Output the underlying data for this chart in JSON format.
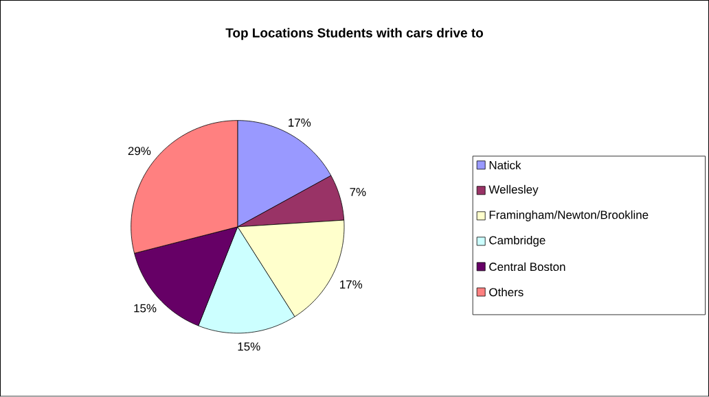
{
  "chart_data": {
    "type": "pie",
    "title": "Top Locations Students with cars drive to",
    "categories": [
      "Natick",
      "Wellesley",
      "Framingham/Newton/Brookline",
      "Cambridge",
      "Central Boston",
      "Others"
    ],
    "values": [
      17,
      7,
      17,
      15,
      15,
      29
    ],
    "colors": [
      "#9999ff",
      "#993366",
      "#ffffcc",
      "#ccffff",
      "#660066",
      "#ff8080"
    ],
    "value_labels": [
      "17%",
      "7%",
      "17%",
      "15%",
      "15%",
      "29%"
    ],
    "legend": "right"
  }
}
